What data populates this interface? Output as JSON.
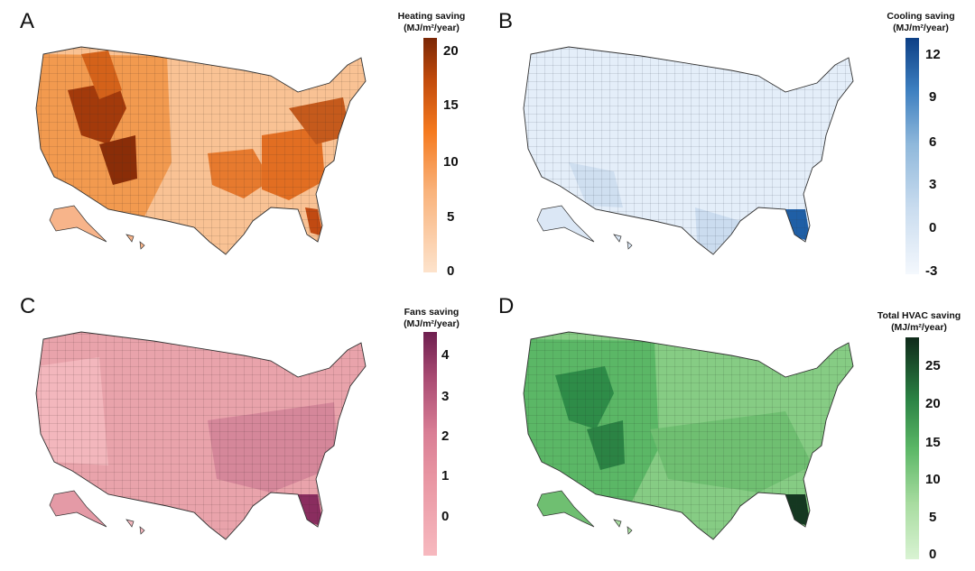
{
  "panels": [
    {
      "letter": "A",
      "legend": {
        "title": "Heating saving",
        "unit": "(MJ/m²/year)",
        "ticks": [
          "20",
          "15",
          "10",
          "5",
          "0"
        ]
      },
      "colors": {
        "low": "#fde3cc",
        "mid": "#f57a1f",
        "high": "#7a2706"
      }
    },
    {
      "letter": "B",
      "legend": {
        "title": "Cooling saving",
        "unit": "(MJ/m²/year)",
        "ticks": [
          "12",
          "9",
          "6",
          "3",
          "0",
          "-3"
        ]
      },
      "colors": {
        "low": "#f4f8fd",
        "mid": "#8fb8db",
        "high": "#0d3f85"
      }
    },
    {
      "letter": "C",
      "legend": {
        "title": "Fans saving",
        "unit": "(MJ/m²/year)",
        "ticks": [
          "4",
          "3",
          "2",
          "1",
          "0"
        ]
      },
      "colors": {
        "low": "#f7b9bf",
        "mid": "#d97e95",
        "high": "#6e1f4f"
      }
    },
    {
      "letter": "D",
      "legend": {
        "title": "Total HVAC saving",
        "unit": "(MJ/m²/year)",
        "ticks": [
          "25",
          "20",
          "15",
          "10",
          "5",
          "0"
        ]
      },
      "colors": {
        "low": "#d9f3d3",
        "mid": "#3ca85a",
        "high": "#0f2a1a"
      }
    }
  ]
}
